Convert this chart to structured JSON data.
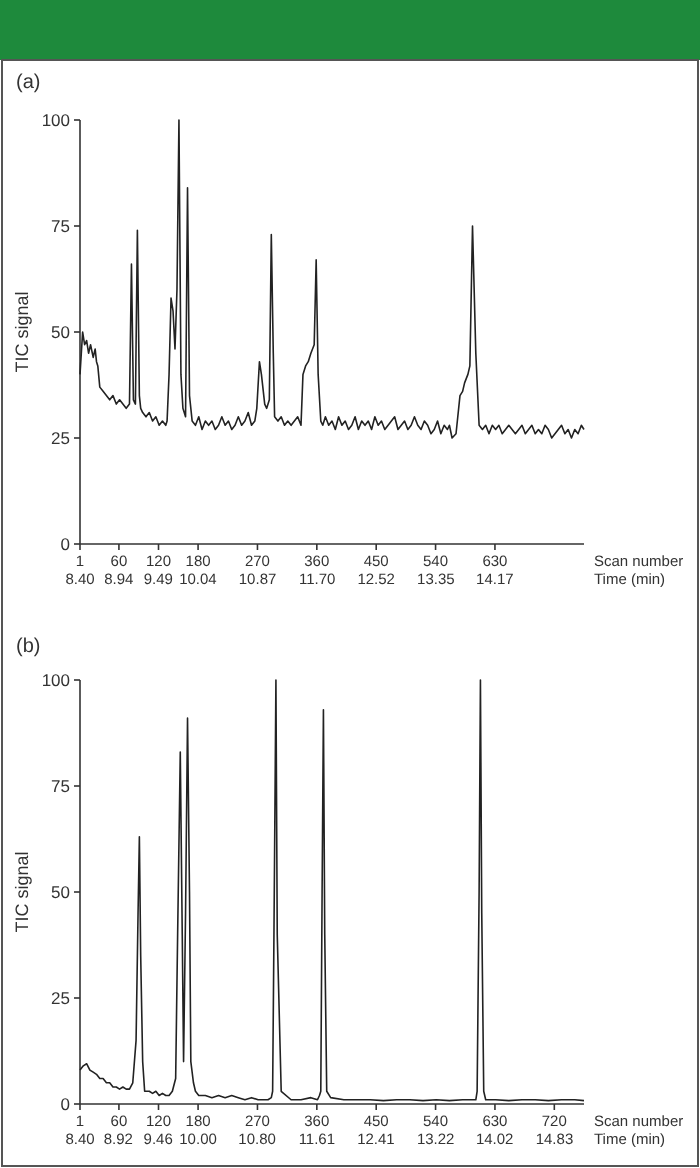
{
  "chart_data": [
    {
      "type": "line",
      "title": "(a)",
      "ylabel": "TIC signal",
      "xlabel": "Scan number",
      "x2label": "Time (min)",
      "xlim": [
        1,
        765
      ],
      "ylim": [
        0,
        100
      ],
      "yticks": [
        0,
        25,
        50,
        75,
        100
      ],
      "xticks": [
        1,
        60,
        120,
        180,
        270,
        360,
        450,
        540,
        630
      ],
      "x2lim": [
        8.4,
        15.41
      ],
      "x2ticks": [
        {
          "value": 8.4,
          "label": "8.40"
        },
        8.94,
        9.49,
        10.04,
        10.87,
        {
          "value": 11.7,
          "label": "11.70"
        },
        12.52,
        13.35,
        14.17
      ],
      "x": [
        1,
        5,
        8,
        11,
        14,
        17,
        21,
        24,
        26,
        28,
        31,
        36,
        41,
        46,
        51,
        56,
        61,
        66,
        71,
        76,
        79,
        82,
        85,
        88,
        91,
        93,
        96,
        101,
        106,
        111,
        116,
        121,
        126,
        131,
        133,
        136,
        139,
        142,
        145,
        148,
        151,
        154,
        157,
        161,
        164,
        167,
        171,
        176,
        181,
        186,
        191,
        196,
        201,
        206,
        211,
        216,
        221,
        226,
        231,
        236,
        241,
        246,
        251,
        256,
        261,
        266,
        269,
        273,
        276,
        281,
        284,
        288,
        291,
        294,
        296,
        301,
        306,
        311,
        316,
        321,
        326,
        331,
        336,
        339,
        343,
        347,
        351,
        356,
        359,
        362,
        366,
        369,
        373,
        378,
        383,
        388,
        393,
        398,
        403,
        408,
        413,
        418,
        423,
        428,
        433,
        438,
        443,
        448,
        453,
        458,
        463,
        468,
        473,
        478,
        483,
        488,
        493,
        498,
        503,
        508,
        513,
        518,
        523,
        528,
        533,
        538,
        543,
        548,
        553,
        558,
        561,
        565,
        571,
        577,
        581,
        584,
        589,
        592,
        596,
        601,
        606,
        611,
        616,
        621,
        626,
        631,
        636,
        641,
        646,
        651,
        656,
        661,
        666,
        671,
        676,
        681,
        686,
        691,
        696,
        701,
        706,
        711,
        716,
        721,
        726,
        731,
        736,
        741,
        746,
        751,
        756,
        761,
        765
      ],
      "series": [
        {
          "color": "#222222",
          "values": [
            40,
            50,
            47,
            48,
            45,
            47,
            44,
            46,
            43,
            42,
            37,
            36,
            35,
            34,
            35,
            33,
            34,
            33,
            32,
            33,
            66,
            34,
            33,
            74,
            35,
            32,
            31,
            30,
            31,
            29,
            30,
            28,
            29,
            28,
            29,
            40,
            58,
            55,
            46,
            60,
            100,
            40,
            32,
            30,
            84,
            35,
            29,
            28,
            30,
            27,
            29,
            28,
            29,
            27,
            28,
            30,
            28,
            29,
            27,
            28,
            30,
            28,
            29,
            31,
            28,
            29,
            32,
            43,
            40,
            33,
            32,
            34,
            73,
            45,
            30,
            29,
            30,
            28,
            29,
            28,
            29,
            30,
            28,
            40,
            42,
            43,
            45,
            47,
            67,
            40,
            29,
            28,
            30,
            28,
            29,
            27,
            30,
            28,
            29,
            27,
            28,
            30,
            27,
            29,
            28,
            29,
            27,
            30,
            28,
            29,
            27,
            28,
            29,
            30,
            27,
            28,
            29,
            27,
            28,
            30,
            28,
            27,
            29,
            28,
            26,
            27,
            29,
            26,
            28,
            27,
            28,
            25,
            26,
            35,
            36,
            38,
            40,
            42,
            75,
            45,
            28,
            27,
            28,
            26,
            28,
            27,
            28,
            26,
            27,
            28,
            27,
            26,
            27,
            28,
            26,
            27,
            28,
            26,
            27,
            26,
            28,
            27,
            25,
            26,
            27,
            28,
            26,
            27,
            25,
            27,
            26,
            28,
            27
          ]
        }
      ]
    },
    {
      "type": "line",
      "title": "(b)",
      "ylabel": "TIC signal",
      "xlabel": "Scan number",
      "x2label": "Time (min)",
      "xlim": [
        1,
        765
      ],
      "ylim": [
        0,
        100
      ],
      "yticks": [
        0,
        25,
        50,
        75,
        100
      ],
      "xticks": [
        1,
        60,
        120,
        180,
        270,
        360,
        450,
        540,
        630,
        720
      ],
      "x2lim": [
        8.4,
        15.23
      ],
      "x2ticks": [
        {
          "value": 8.4,
          "label": "8.40"
        },
        8.92,
        9.46,
        {
          "value": 10,
          "label": "10.00"
        },
        {
          "value": 10.8,
          "label": "10.80"
        },
        11.61,
        12.41,
        13.22,
        14.02,
        14.83
      ],
      "x": [
        1,
        6,
        11,
        16,
        21,
        26,
        31,
        36,
        41,
        46,
        51,
        56,
        61,
        66,
        71,
        76,
        81,
        86,
        89,
        91,
        93,
        96,
        99,
        106,
        111,
        116,
        121,
        126,
        131,
        136,
        141,
        146,
        149,
        153,
        156,
        158,
        161,
        164,
        167,
        169,
        173,
        176,
        181,
        191,
        201,
        211,
        221,
        231,
        241,
        251,
        261,
        271,
        281,
        286,
        291,
        293,
        295,
        298,
        300,
        306,
        321,
        336,
        351,
        361,
        364,
        366,
        368,
        370,
        372,
        375,
        381,
        401,
        421,
        441,
        461,
        481,
        501,
        521,
        541,
        561,
        581,
        601,
        603,
        606,
        608,
        610,
        613,
        616,
        631,
        651,
        671,
        691,
        711,
        731,
        751,
        765
      ],
      "series": [
        {
          "color": "#222222",
          "values": [
            8,
            9,
            9.5,
            8,
            7.5,
            7,
            6,
            6,
            5,
            5,
            4,
            4,
            3.5,
            4,
            3.5,
            3.5,
            5,
            15,
            45,
            63,
            35,
            10,
            3,
            3,
            2.5,
            3,
            2,
            2.5,
            2,
            2,
            3,
            6,
            40,
            83,
            40,
            10,
            45,
            91,
            50,
            10,
            5,
            3,
            2,
            2,
            1.5,
            2,
            1.5,
            2,
            1.5,
            1,
            1.5,
            1,
            1,
            1,
            1.5,
            3,
            40,
            100,
            40,
            3,
            1,
            1,
            1.5,
            1,
            2,
            3,
            50,
            93,
            40,
            3,
            1.5,
            1,
            1,
            1,
            0.8,
            1,
            1,
            0.8,
            1,
            0.8,
            1,
            1,
            3,
            50,
            100,
            45,
            3,
            1,
            1,
            0.8,
            1,
            1,
            0.8,
            1,
            1,
            0.8
          ]
        }
      ]
    }
  ]
}
